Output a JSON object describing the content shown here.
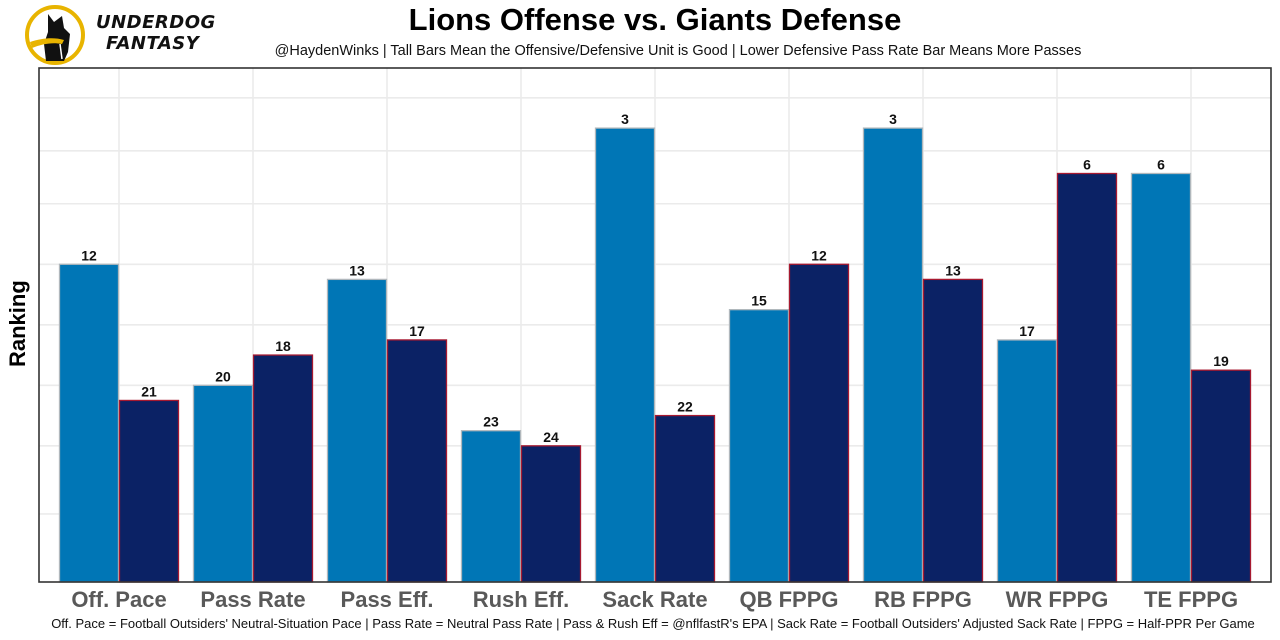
{
  "logo": {
    "icon": "underdog-dog-icon",
    "line1": "UNDERDOG",
    "line2": "FANTASY"
  },
  "colors": {
    "offense_fill": "#0076B6",
    "offense_border": "#B0B7BC",
    "defense_fill": "#0B2265",
    "defense_border": "#A71930",
    "logo_ring": "#E8B400"
  },
  "chart_data": {
    "type": "bar",
    "title": "Lions Offense vs. Giants Defense",
    "subtitle": "@HaydenWinks | Tall Bars Mean the Offensive/Defensive Unit is Good | Lower Defensive Pass Rate Bar Means More Passes",
    "xlabel": "",
    "ylabel": "Ranking",
    "caption": "Off. Pace = Football Outsiders' Neutral-Situation Pace | Pass Rate = Neutral Pass Rate | Pass & Rush Eff = @nflfastR's EPA | Sack Rate = Football Outsiders' Adjusted Sack Rate | FPPG = Half-PPR Per Game",
    "categories": [
      "Off. Pace",
      "Pass Rate",
      "Pass Eff.",
      "Rush Eff.",
      "Sack Rate",
      "QB FPPG",
      "RB FPPG",
      "WR FPPG",
      "TE FPPG"
    ],
    "series": [
      {
        "name": "Lions Offense",
        "values": [
          12,
          20,
          13,
          23,
          3,
          15,
          3,
          17,
          6
        ]
      },
      {
        "name": "Giants Defense",
        "values": [
          21,
          18,
          17,
          24,
          22,
          12,
          13,
          6,
          19
        ]
      }
    ],
    "y_axis": "rank (1 = best, drawn tallest); bar height = 33 - rank",
    "ylim_rank": [
      33,
      -1
    ],
    "grid": true,
    "y_tick_labels_shown": false,
    "legend": "none"
  }
}
